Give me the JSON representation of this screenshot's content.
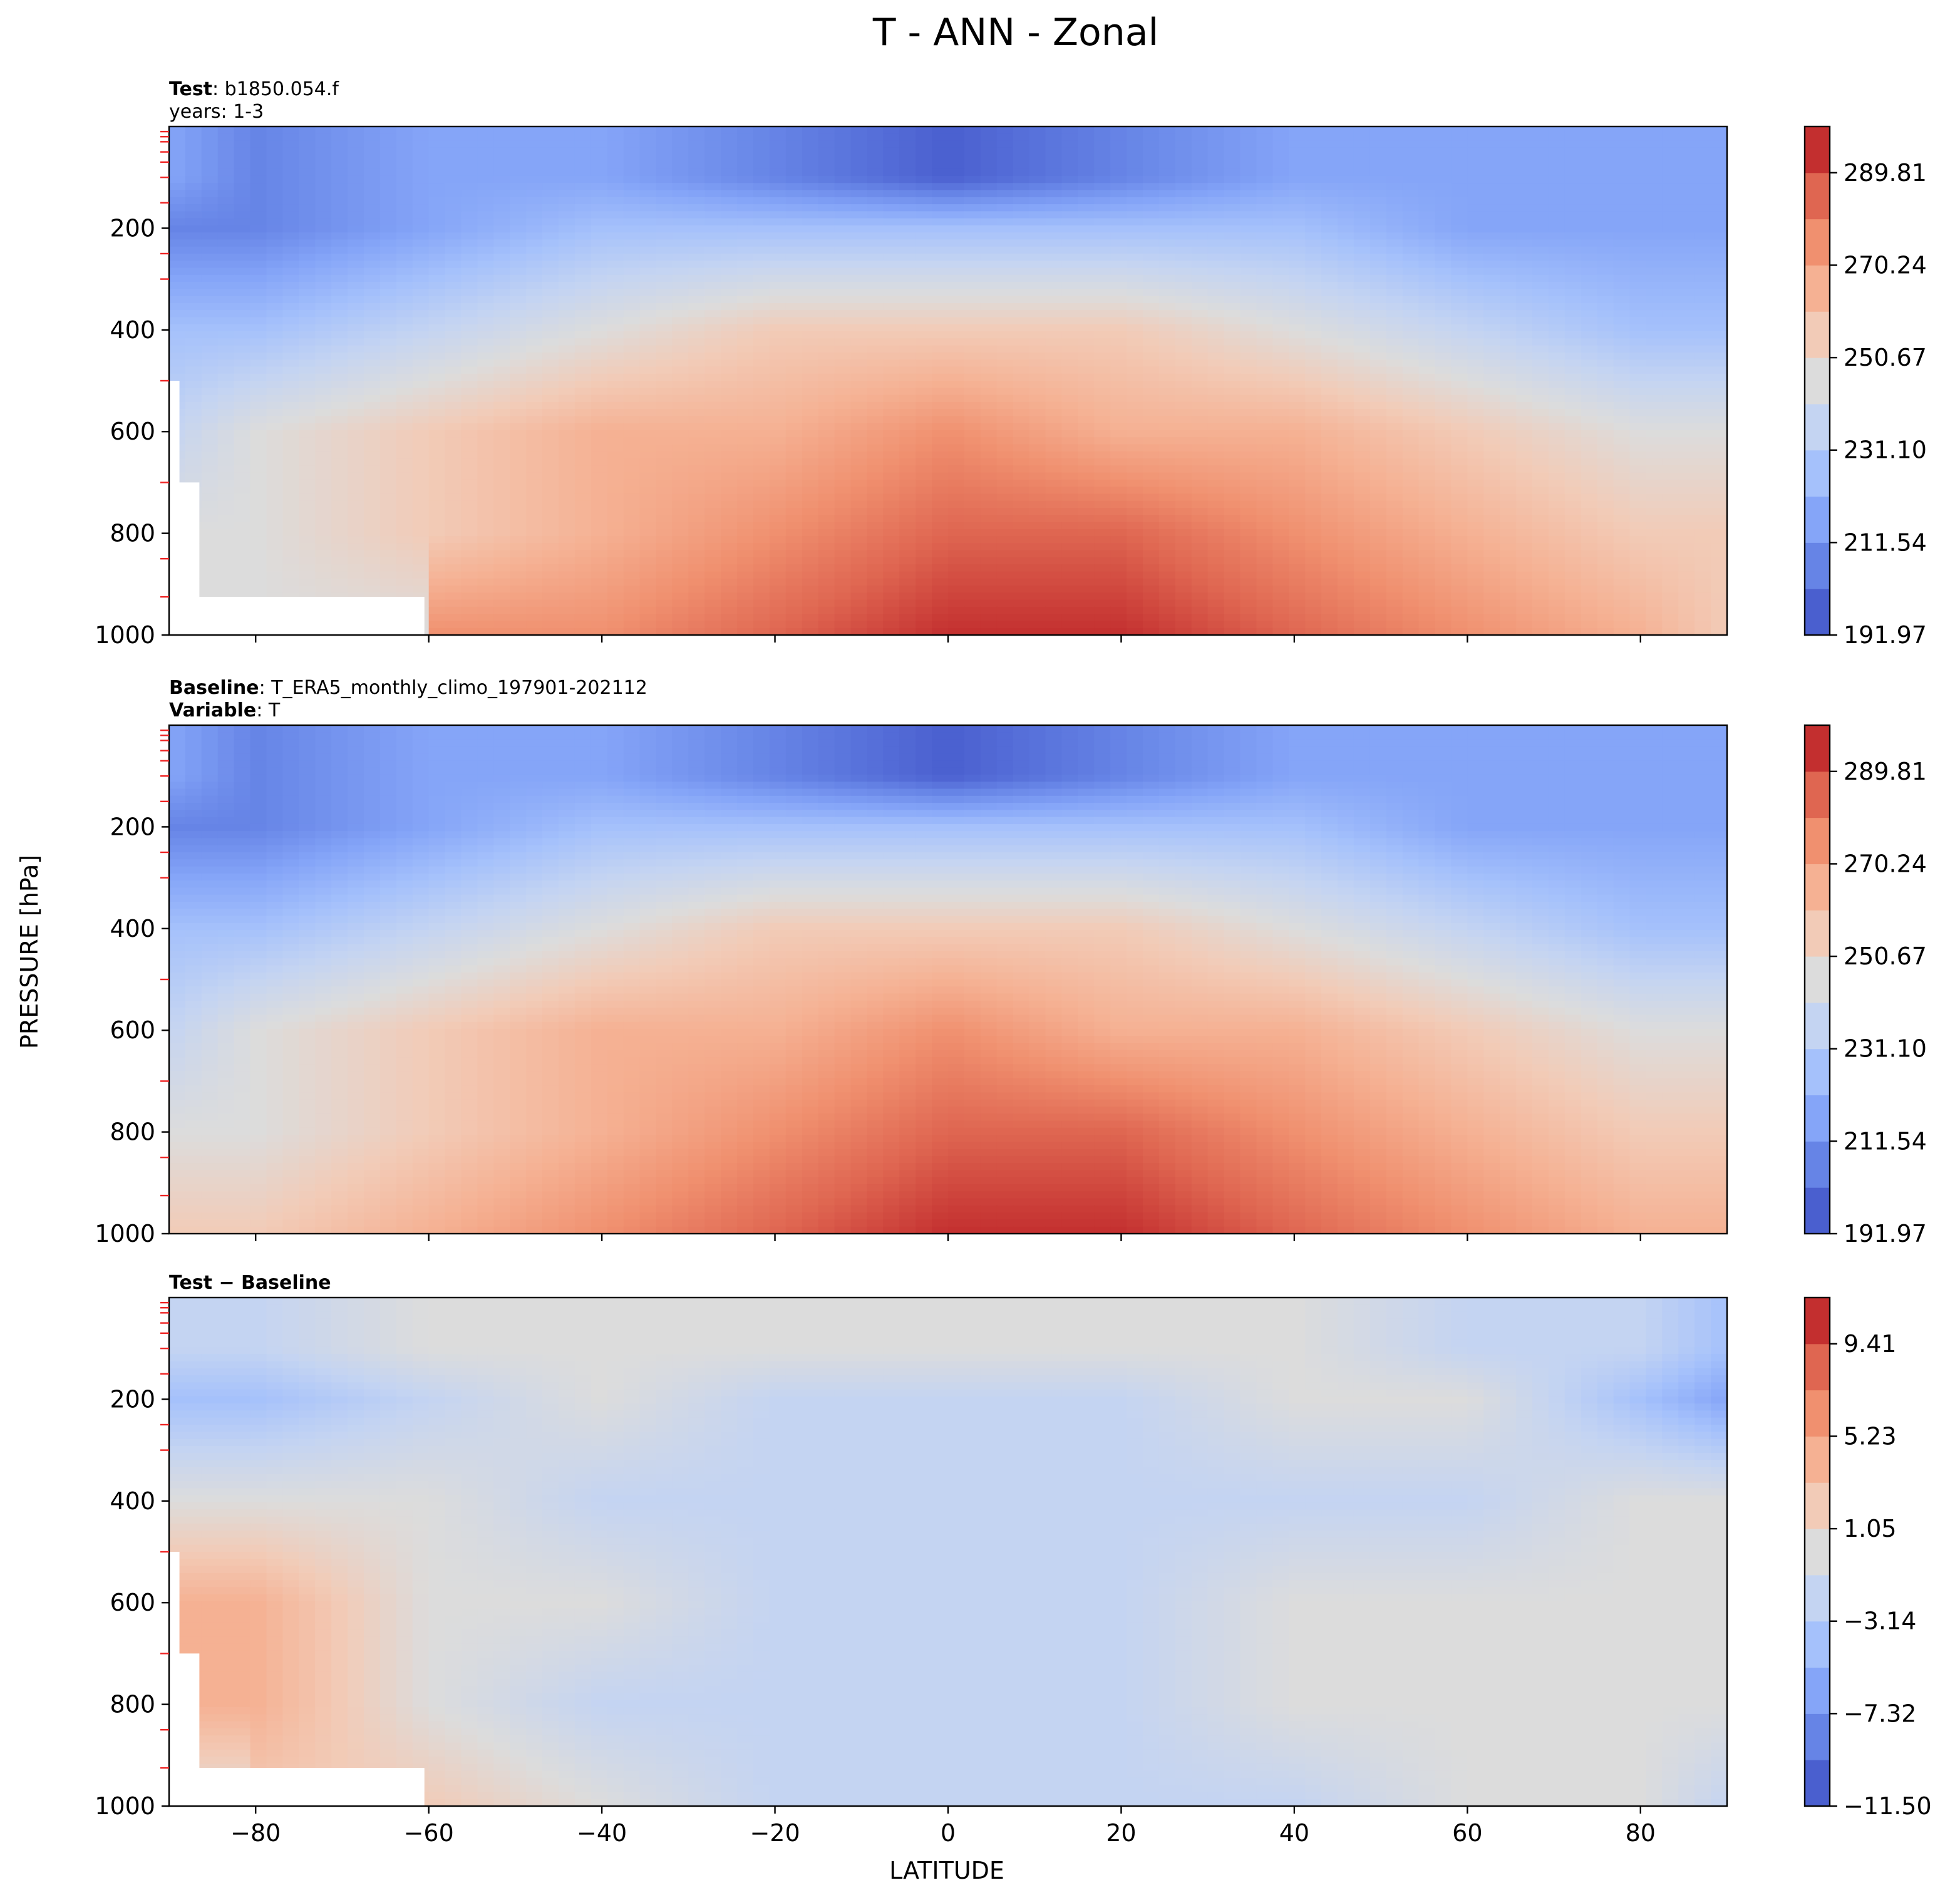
{
  "figure": {
    "title": "T - ANN - Zonal",
    "xlabel": "LATITUDE",
    "ylabel": "PRESSURE [hPa]"
  },
  "panels": [
    {
      "id": "test",
      "title_lines": [
        [
          {
            "text": "Test",
            "bold": true
          },
          {
            "text": ": b1850.054.f",
            "bold": false
          }
        ],
        [
          {
            "text": "years: 1-3",
            "bold": false
          }
        ]
      ],
      "colorbar_ticks": [
        "289.81",
        "270.24",
        "250.67",
        "231.10",
        "211.54",
        "191.97"
      ]
    },
    {
      "id": "baseline",
      "title_lines": [
        [
          {
            "text": "Baseline",
            "bold": true
          },
          {
            "text": ": T_ERA5_monthly_climo_197901-202112",
            "bold": false
          }
        ],
        [
          {
            "text": "Variable",
            "bold": true
          },
          {
            "text": ": T",
            "bold": false
          }
        ]
      ],
      "colorbar_ticks": [
        "289.81",
        "270.24",
        "250.67",
        "231.10",
        "211.54",
        "191.97"
      ]
    },
    {
      "id": "difference",
      "title_lines": [
        [
          {
            "text": "Test − Baseline",
            "bold": true
          }
        ]
      ],
      "colorbar_ticks": [
        "9.41",
        "5.23",
        "1.05",
        "−3.14",
        "−7.32",
        "−11.50"
      ]
    }
  ],
  "chart_data": [
    {
      "type": "heatmap",
      "title": "Test: b1850.054.f, years: 1-3",
      "x": [
        -90,
        -80,
        -60,
        -40,
        -20,
        0,
        20,
        40,
        60,
        80,
        90
      ],
      "xlim": [
        -90,
        90
      ],
      "xticks": [
        -80,
        -60,
        -40,
        -20,
        0,
        20,
        40,
        60,
        80
      ],
      "ylim": [
        1000,
        0
      ],
      "yticks": [
        200,
        400,
        600,
        800,
        1000
      ],
      "colormap": "coolwarm",
      "levels": [
        191.97,
        201.75,
        211.54,
        221.32,
        231.1,
        240.89,
        250.67,
        260.46,
        270.24,
        280.03,
        289.81,
        299.59
      ],
      "colorbar_ticks": [
        191.97,
        211.54,
        231.1,
        250.67,
        270.24,
        289.81
      ],
      "level_index_profile": {
        "1000": [
          null,
          null,
          null,
          8,
          9,
          10,
          10,
          9,
          8,
          7,
          6
        ],
        "800": [
          null,
          5,
          6,
          7,
          8,
          9,
          9,
          8,
          7,
          6,
          6
        ],
        "600": [
          4,
          5,
          6,
          7,
          7,
          8,
          7,
          7,
          6,
          5,
          5
        ],
        "400": [
          3,
          3,
          4,
          5,
          6,
          6,
          6,
          5,
          4,
          3,
          3
        ],
        "200": [
          1,
          1,
          2,
          3,
          3,
          3,
          3,
          3,
          2,
          2,
          2
        ],
        "100": [
          2,
          1,
          2,
          2,
          1,
          0,
          1,
          2,
          2,
          2,
          2
        ]
      }
    },
    {
      "type": "heatmap",
      "title": "Baseline: T_ERA5_monthly_climo_197901-202112, Variable: T",
      "x": [
        -90,
        -80,
        -60,
        -40,
        -20,
        0,
        20,
        40,
        60,
        80,
        90
      ],
      "xlim": [
        -90,
        90
      ],
      "xticks": [
        -80,
        -60,
        -40,
        -20,
        0,
        20,
        40,
        60,
        80
      ],
      "ylim": [
        1000,
        0
      ],
      "yticks": [
        200,
        400,
        600,
        800,
        1000
      ],
      "colormap": "coolwarm",
      "levels": [
        191.97,
        201.75,
        211.54,
        221.32,
        231.1,
        240.89,
        250.67,
        260.46,
        270.24,
        280.03,
        289.81,
        299.59
      ],
      "colorbar_ticks": [
        191.97,
        211.54,
        231.1,
        250.67,
        270.24,
        289.81
      ],
      "level_index_profile": {
        "1000": [
          6,
          6,
          7,
          8,
          9,
          10,
          10,
          9,
          8,
          7,
          7
        ],
        "800": [
          5,
          5,
          6,
          7,
          8,
          9,
          9,
          8,
          7,
          6,
          6
        ],
        "600": [
          4,
          5,
          6,
          7,
          7,
          8,
          7,
          7,
          6,
          5,
          5
        ],
        "400": [
          3,
          3,
          4,
          5,
          6,
          6,
          6,
          5,
          4,
          3,
          3
        ],
        "200": [
          1,
          1,
          2,
          3,
          3,
          3,
          3,
          3,
          2,
          2,
          2
        ],
        "100": [
          2,
          1,
          2,
          2,
          1,
          0,
          1,
          2,
          2,
          2,
          2
        ]
      }
    },
    {
      "type": "heatmap",
      "title": "Test − Baseline",
      "x": [
        -90,
        -80,
        -60,
        -40,
        -20,
        0,
        20,
        40,
        60,
        80,
        90
      ],
      "xlim": [
        -90,
        90
      ],
      "xticks": [
        -80,
        -60,
        -40,
        -20,
        0,
        20,
        40,
        60,
        80
      ],
      "ylim": [
        1000,
        0
      ],
      "yticks": [
        200,
        400,
        600,
        800,
        1000
      ],
      "colormap": "coolwarm",
      "levels": [
        -11.5,
        -9.41,
        -7.32,
        -5.23,
        -3.14,
        -1.05,
        1.05,
        3.14,
        5.23,
        7.32,
        9.41,
        11.5
      ],
      "colorbar_ticks": [
        -11.5,
        -7.32,
        -3.14,
        1.05,
        5.23,
        9.41
      ],
      "level_index_profile": {
        "1000": [
          null,
          null,
          6,
          5,
          4,
          4,
          4,
          4,
          5,
          5,
          4
        ],
        "800": [
          null,
          7,
          5,
          4,
          4,
          4,
          4,
          5,
          5,
          5,
          5
        ],
        "600": [
          7,
          7,
          5,
          5,
          4,
          4,
          4,
          5,
          5,
          5,
          5
        ],
        "400": [
          5,
          5,
          5,
          4,
          4,
          4,
          4,
          4,
          4,
          5,
          5
        ],
        "200": [
          3,
          3,
          4,
          5,
          4,
          4,
          4,
          5,
          5,
          3,
          2
        ],
        "100": [
          4,
          4,
          5,
          5,
          5,
          5,
          5,
          5,
          4,
          4,
          3
        ]
      }
    }
  ]
}
